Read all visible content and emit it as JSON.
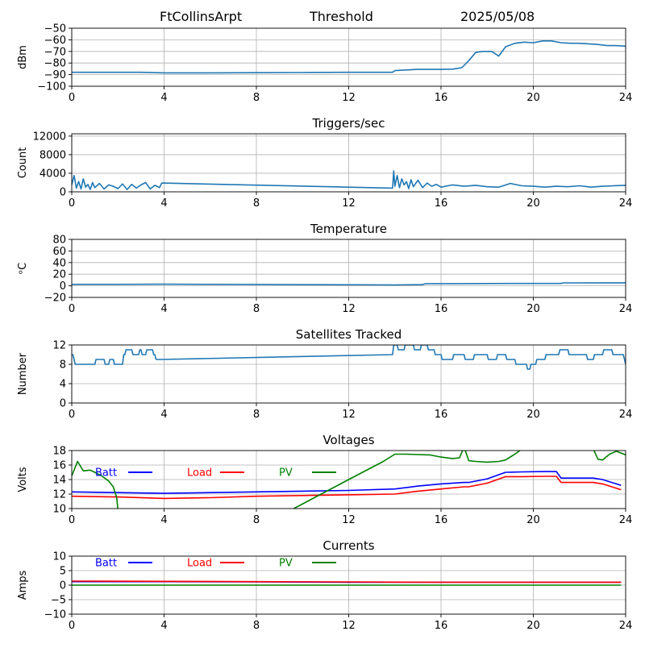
{
  "header": {
    "station": "FtCollinsArpt",
    "mode": "Threshold",
    "date": "2025/05/08"
  },
  "colors": {
    "series_default": "#1f77b4",
    "grid": "#b0b0b0",
    "batt": "#0000ff",
    "load": "#ff0000",
    "pv": "#008000"
  },
  "chart_data": [
    {
      "type": "line",
      "title": "",
      "xlabel": "",
      "ylabel": "dBm",
      "xlim": [
        0,
        24
      ],
      "ylim": [
        -100,
        -50
      ],
      "xticks": [
        "0",
        "4",
        "8",
        "12",
        "16",
        "20",
        "24"
      ],
      "yticks": [
        "−100",
        "−90",
        "−80",
        "−70",
        "−60",
        "−50"
      ],
      "ytick_values": [
        -100,
        -90,
        -80,
        -70,
        -60,
        -50
      ],
      "grid": true,
      "series": [
        {
          "color": "#1f77b4",
          "x": [
            0,
            1,
            2,
            3,
            4,
            6,
            8,
            10,
            12,
            13.9,
            14.0,
            14.5,
            15,
            15.5,
            16,
            16.5,
            16.9,
            17.2,
            17.5,
            17.8,
            18.2,
            18.5,
            18.8,
            19.2,
            19.6,
            20.0,
            20.4,
            20.8,
            21.2,
            21.6,
            22.0,
            22.4,
            22.8,
            23.2,
            23.6,
            24
          ],
          "y": [
            -88,
            -88,
            -88,
            -88,
            -88.5,
            -88.5,
            -88.3,
            -88.2,
            -88.0,
            -88.0,
            -86.5,
            -86,
            -85.5,
            -85.5,
            -85.5,
            -85.3,
            -84,
            -78,
            -71,
            -70,
            -70,
            -74,
            -66,
            -63,
            -62,
            -62.5,
            -61,
            -61,
            -62.5,
            -63,
            -63,
            -63.5,
            -64,
            -65,
            -65,
            -65.5
          ]
        }
      ]
    },
    {
      "type": "line",
      "title": "Triggers/sec",
      "xlabel": "",
      "ylabel": "Count",
      "xlim": [
        0,
        24
      ],
      "ylim": [
        0,
        12500
      ],
      "xticks": [
        "0",
        "4",
        "8",
        "12",
        "16",
        "20",
        "24"
      ],
      "yticks": [
        "0",
        "4000",
        "8000",
        "12000"
      ],
      "ytick_values": [
        0,
        4000,
        8000,
        12000
      ],
      "grid": true,
      "series": [
        {
          "color": "#1f77b4",
          "x": [
            0,
            0.1,
            0.2,
            0.3,
            0.4,
            0.5,
            0.6,
            0.7,
            0.8,
            0.9,
            1.0,
            1.2,
            1.4,
            1.6,
            1.8,
            2.0,
            2.2,
            2.4,
            2.6,
            2.8,
            3.0,
            3.2,
            3.4,
            3.6,
            3.8,
            3.9,
            13.9,
            13.95,
            14.0,
            14.1,
            14.2,
            14.3,
            14.4,
            14.5,
            14.6,
            14.7,
            14.8,
            14.9,
            15.0,
            15.2,
            15.4,
            15.6,
            15.8,
            16.0,
            16.5,
            17.0,
            17.5,
            18.0,
            18.5,
            19.0,
            19.5,
            20.0,
            20.5,
            21.0,
            21.5,
            22.0,
            22.5,
            23.0,
            23.5,
            24.0
          ],
          "y": [
            1500,
            3500,
            800,
            2200,
            600,
            2800,
            1000,
            1600,
            500,
            2000,
            900,
            1800,
            600,
            1500,
            1200,
            700,
            1700,
            500,
            1600,
            800,
            1500,
            2000,
            600,
            1400,
            900,
            1900,
            800,
            4500,
            1200,
            3500,
            900,
            2800,
            1500,
            2200,
            700,
            2600,
            1100,
            1800,
            2500,
            900,
            1900,
            1200,
            1600,
            1000,
            1500,
            1200,
            1400,
            1100,
            1000,
            1800,
            1300,
            1200,
            1000,
            1200,
            1100,
            1300,
            1000,
            1200,
            1300,
            1400
          ]
        }
      ]
    },
    {
      "type": "line",
      "title": "Temperature",
      "xlabel": "",
      "ylabel": "ᵒC",
      "xlim": [
        0,
        24
      ],
      "ylim": [
        -20,
        80
      ],
      "xticks": [
        "0",
        "4",
        "8",
        "12",
        "16",
        "20",
        "24"
      ],
      "yticks": [
        "−20",
        "0",
        "20",
        "40",
        "60",
        "80"
      ],
      "ytick_values": [
        -20,
        0,
        20,
        40,
        60,
        80
      ],
      "grid": true,
      "series": [
        {
          "color": "#1f77b4",
          "x": [
            0,
            2,
            4,
            6,
            8,
            10,
            12,
            14,
            15.2,
            15.3,
            17,
            19,
            21.2,
            21.3,
            23,
            24
          ],
          "y": [
            2.5,
            2.5,
            2.8,
            2.5,
            2.3,
            2.0,
            1.8,
            1.5,
            2.0,
            3.5,
            3.8,
            4.0,
            4.0,
            5.0,
            5.2,
            5.2
          ]
        }
      ]
    },
    {
      "type": "line",
      "title": "Satellites Tracked",
      "xlabel": "",
      "ylabel": "Number",
      "xlim": [
        0,
        24
      ],
      "ylim": [
        0,
        12
      ],
      "xticks": [
        "0",
        "4",
        "8",
        "12",
        "16",
        "20",
        "24"
      ],
      "yticks": [
        "0",
        "4",
        "8",
        "12"
      ],
      "ytick_values": [
        0,
        4,
        8,
        12
      ],
      "grid": true,
      "series": [
        {
          "color": "#1f77b4",
          "x": [
            0,
            0.05,
            0.1,
            0.15,
            1.0,
            1.05,
            1.4,
            1.45,
            1.6,
            1.65,
            1.8,
            1.85,
            2.2,
            2.25,
            2.3,
            2.35,
            2.6,
            2.65,
            2.9,
            2.95,
            3.0,
            3.05,
            3.2,
            3.25,
            3.5,
            3.55,
            3.6,
            3.65,
            3.9,
            13.9,
            13.95,
            14.1,
            14.15,
            14.4,
            14.45,
            14.8,
            14.85,
            15.1,
            15.15,
            15.4,
            15.45,
            15.7,
            15.75,
            16.0,
            16.05,
            16.5,
            16.55,
            17.0,
            17.05,
            17.4,
            17.45,
            18.0,
            18.05,
            18.4,
            18.45,
            18.8,
            18.85,
            19.2,
            19.25,
            19.7,
            19.75,
            19.85,
            19.9,
            20.1,
            20.15,
            20.5,
            20.55,
            21.1,
            21.15,
            21.5,
            21.55,
            22.3,
            22.35,
            22.6,
            22.65,
            23.0,
            23.05,
            23.4,
            23.45,
            23.9,
            23.95,
            24.0
          ],
          "y": [
            10,
            10,
            9,
            8,
            8,
            9,
            9,
            8,
            8,
            9,
            9,
            8,
            8,
            10,
            10,
            11,
            11,
            10,
            10,
            11,
            11,
            10,
            10,
            11,
            11,
            10,
            10,
            9,
            9,
            10,
            12,
            12,
            11,
            11,
            12,
            12,
            11,
            11,
            12,
            12,
            11,
            11,
            10,
            10,
            9,
            9,
            10,
            10,
            9,
            9,
            10,
            10,
            9,
            9,
            10,
            10,
            9,
            9,
            8,
            8,
            7,
            7,
            8,
            8,
            9,
            9,
            10,
            10,
            11,
            11,
            10,
            10,
            9,
            9,
            10,
            10,
            11,
            11,
            10,
            10,
            9,
            8
          ]
        }
      ]
    },
    {
      "type": "line",
      "title": "Voltages",
      "xlabel": "",
      "ylabel": "Volts",
      "xlim": [
        0,
        24
      ],
      "ylim": [
        10,
        18
      ],
      "xticks": [
        "0",
        "4",
        "8",
        "12",
        "16",
        "20",
        "24"
      ],
      "yticks": [
        "10",
        "12",
        "14",
        "16",
        "18"
      ],
      "ytick_values": [
        10,
        12,
        14,
        16,
        18
      ],
      "grid": true,
      "legend": [
        "Batt",
        "Load",
        "PV"
      ],
      "series": [
        {
          "name": "Batt",
          "color": "#0000ff",
          "x": [
            0,
            2,
            4,
            6,
            8,
            10,
            12,
            14,
            15,
            16,
            17,
            17.2,
            18,
            18.8,
            19.5,
            20.5,
            21.0,
            21.2,
            22.6,
            23.0,
            23.8
          ],
          "y": [
            12.3,
            12.2,
            12.1,
            12.2,
            12.3,
            12.4,
            12.5,
            12.7,
            13.1,
            13.4,
            13.6,
            13.6,
            14.1,
            15.0,
            15.05,
            15.1,
            15.1,
            14.2,
            14.2,
            14.0,
            13.2
          ]
        },
        {
          "name": "Load",
          "color": "#ff0000",
          "x": [
            0,
            2,
            4,
            6,
            8,
            10,
            12,
            14,
            15,
            16,
            17,
            17.2,
            18,
            18.8,
            19.5,
            20.5,
            21.0,
            21.2,
            22.6,
            23.0,
            23.8
          ],
          "y": [
            11.7,
            11.6,
            11.4,
            11.5,
            11.7,
            11.8,
            11.9,
            12.0,
            12.4,
            12.7,
            13.0,
            13.0,
            13.5,
            14.4,
            14.4,
            14.45,
            14.45,
            13.6,
            13.6,
            13.4,
            12.6
          ],
          "visible_range": [
            0,
            23.8
          ]
        },
        {
          "name": "PV",
          "color": "#008000",
          "x": [
            0,
            0.25,
            0.5,
            0.8,
            1.0,
            1.3,
            1.6,
            1.8,
            1.95,
            2.0,
            9.5,
            12,
            13.5,
            14.0,
            14.5,
            15.5,
            16.0,
            16.5,
            16.8,
            17.0,
            17.2,
            17.5,
            18.0,
            18.5,
            18.8,
            19.2,
            19.5,
            22.6,
            22.8,
            23.0,
            23.3,
            23.6,
            24.0
          ],
          "y": [
            14.5,
            16.5,
            15.2,
            15.3,
            15.0,
            14.5,
            13.8,
            13.0,
            11.5,
            9.8,
            9.8,
            14.0,
            16.5,
            17.5,
            17.5,
            17.4,
            17.1,
            16.9,
            17.0,
            18.5,
            16.6,
            16.5,
            16.4,
            16.5,
            16.7,
            17.5,
            18.2,
            18.2,
            16.8,
            16.7,
            17.5,
            17.9,
            17.4
          ]
        }
      ]
    },
    {
      "type": "line",
      "title": "Currents",
      "xlabel": "",
      "ylabel": "Amps",
      "xlim": [
        0,
        24
      ],
      "ylim": [
        -10,
        10
      ],
      "xticks": [
        "0",
        "4",
        "8",
        "12",
        "16",
        "20",
        "24"
      ],
      "yticks": [
        "−10",
        "−5",
        "0",
        "5",
        "10"
      ],
      "ytick_values": [
        -10,
        -5,
        0,
        5,
        10
      ],
      "grid": true,
      "legend": [
        "Batt",
        "Load",
        "PV"
      ],
      "series": [
        {
          "name": "Batt",
          "color": "#0000ff",
          "x": [
            0,
            4,
            8,
            12,
            16,
            20,
            23.8
          ],
          "y": [
            1.2,
            1.2,
            1.1,
            1.0,
            1.0,
            1.0,
            1.0
          ]
        },
        {
          "name": "Load",
          "color": "#ff0000",
          "x": [
            0,
            4,
            8,
            12,
            16,
            20,
            23.8
          ],
          "y": [
            1.4,
            1.3,
            1.2,
            1.1,
            1.0,
            1.0,
            1.0
          ]
        },
        {
          "name": "PV",
          "color": "#008000",
          "x": [
            0,
            4,
            8,
            12,
            16,
            20,
            23.8
          ],
          "y": [
            0,
            0,
            0,
            0,
            0,
            0,
            0
          ]
        }
      ]
    }
  ]
}
